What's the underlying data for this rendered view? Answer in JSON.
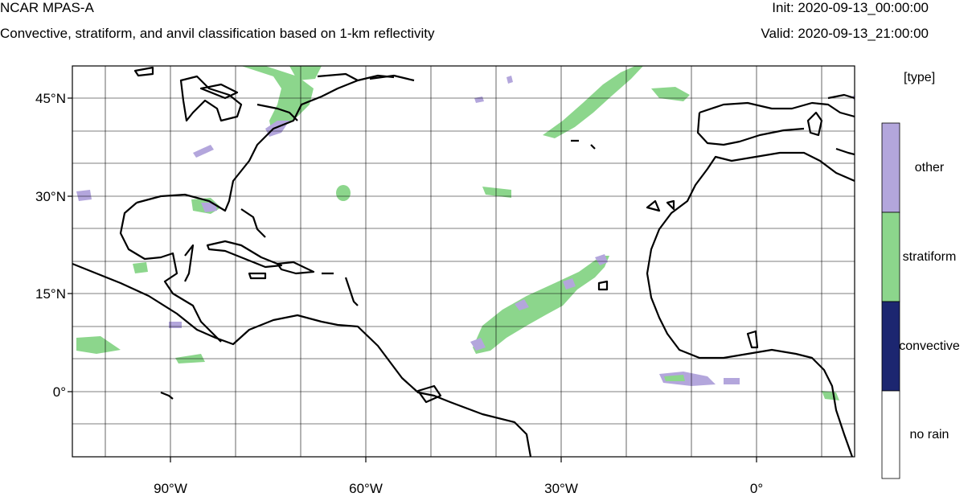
{
  "header": {
    "model": "NCAR MPAS-A",
    "description": "Convective, stratiform, and anvil classification based on 1-km reflectivity",
    "init": "Init: 2020-09-13_00:00:00",
    "valid": "Valid: 2020-09-13_21:00:00"
  },
  "map": {
    "lat_ticks": [
      "45°N",
      "30°N",
      "15°N",
      "0°"
    ],
    "lon_ticks": [
      "90°W",
      "60°W",
      "30°W",
      "0°"
    ],
    "lon_range": [
      -105,
      15
    ],
    "lat_range": [
      -10,
      50
    ],
    "grid_lines": true
  },
  "legend": {
    "title": "[type]",
    "categories": [
      {
        "label": "other",
        "color": "#b3a6dc"
      },
      {
        "label": "stratiform",
        "color": "#8cd68c"
      },
      {
        "label": "convective",
        "color": "#1c2670"
      },
      {
        "label": "no rain",
        "color": "#ffffff"
      }
    ]
  }
}
